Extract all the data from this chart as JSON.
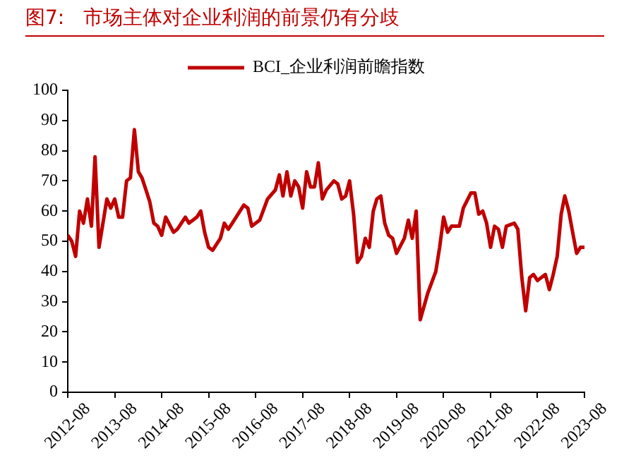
{
  "chart_data": {
    "type": "line",
    "title": "图7:   市场主体对企业利润的前景仍有分歧",
    "x": [
      "2012-08",
      "2012-09",
      "2012-10",
      "2012-11",
      "2012-12",
      "2013-01",
      "2013-02",
      "2013-03",
      "2013-04",
      "2013-06",
      "2013-07",
      "2013-08",
      "2013-09",
      "2013-10",
      "2013-11",
      "2013-12",
      "2014-01",
      "2014-02",
      "2014-03",
      "2014-04",
      "2014-05",
      "2014-06",
      "2014-07",
      "2014-08",
      "2014-09",
      "2014-11",
      "2014-12",
      "2015-02",
      "2015-03",
      "2015-04",
      "2015-05",
      "2015-06",
      "2015-07",
      "2015-08",
      "2015-09",
      "2015-10",
      "2015-11",
      "2015-12",
      "2016-01",
      "2016-02",
      "2016-04",
      "2016-05",
      "2016-06",
      "2016-07",
      "2016-09",
      "2016-11",
      "2017-01",
      "2017-02",
      "2017-03",
      "2017-04",
      "2017-05",
      "2017-06",
      "2017-07",
      "2017-08",
      "2017-09",
      "2017-10",
      "2017-11",
      "2017-12",
      "2018-01",
      "2018-02",
      "2018-04",
      "2018-05",
      "2018-06",
      "2018-07",
      "2018-08",
      "2018-09",
      "2018-10",
      "2018-11",
      "2018-12",
      "2019-01",
      "2019-02",
      "2019-03",
      "2019-04",
      "2019-05",
      "2019-06",
      "2019-07",
      "2019-08",
      "2019-10",
      "2019-11",
      "2019-12",
      "2020-01",
      "2020-02",
      "2020-04",
      "2020-06",
      "2020-07",
      "2020-08",
      "2020-09",
      "2020-10",
      "2020-12",
      "2021-01",
      "2021-03",
      "2021-04",
      "2021-05",
      "2021-06",
      "2021-07",
      "2021-08",
      "2021-09",
      "2021-10",
      "2021-11",
      "2021-12",
      "2022-02",
      "2022-03",
      "2022-04",
      "2022-05",
      "2022-06",
      "2022-07",
      "2022-08",
      "2022-10",
      "2022-11",
      "2022-12",
      "2023-01",
      "2023-02",
      "2023-03",
      "2023-04",
      "2023-05",
      "2023-06",
      "2023-07",
      "2023-08"
    ],
    "series": [
      {
        "name": "BCI_企业利润前瞻指数",
        "color": "#c00000",
        "values": [
          52,
          50,
          45,
          60,
          56,
          64,
          55,
          78,
          48,
          64,
          61,
          64,
          58,
          58,
          70,
          71,
          87,
          73,
          71,
          67,
          63,
          56,
          55,
          52,
          58,
          53,
          54,
          58,
          56,
          57,
          58,
          60,
          53,
          48,
          47,
          49,
          51,
          56,
          54,
          56,
          60,
          62,
          61,
          55,
          57,
          64,
          67,
          72,
          65,
          73,
          65,
          70,
          68,
          61,
          73,
          68,
          68,
          76,
          64,
          67,
          70,
          69,
          64,
          65,
          70,
          59,
          43,
          45,
          51,
          48,
          60,
          64,
          65,
          56,
          52,
          51,
          46,
          51,
          57,
          51,
          60,
          24,
          33,
          40,
          48,
          58,
          53,
          55,
          55,
          61,
          66,
          66,
          59,
          60,
          56,
          48,
          55,
          54,
          48,
          55,
          56,
          54,
          38,
          27,
          38,
          39,
          37,
          39,
          34,
          39,
          45,
          59,
          65,
          60,
          53,
          46,
          48,
          48
        ]
      }
    ],
    "xlim": [
      "2012-08",
      "2023-08"
    ],
    "xticks": [
      "2012-08",
      "2013-08",
      "2014-08",
      "2015-08",
      "2016-08",
      "2017-08",
      "2018-08",
      "2019-08",
      "2020-08",
      "2021-08",
      "2022-08",
      "2023-08"
    ],
    "ylim": [
      0,
      100
    ],
    "yticks": [
      0,
      10,
      20,
      30,
      40,
      50,
      60,
      70,
      80,
      90,
      100
    ],
    "grid": false,
    "legend": "top",
    "marker": "none",
    "line_style": "solid"
  }
}
